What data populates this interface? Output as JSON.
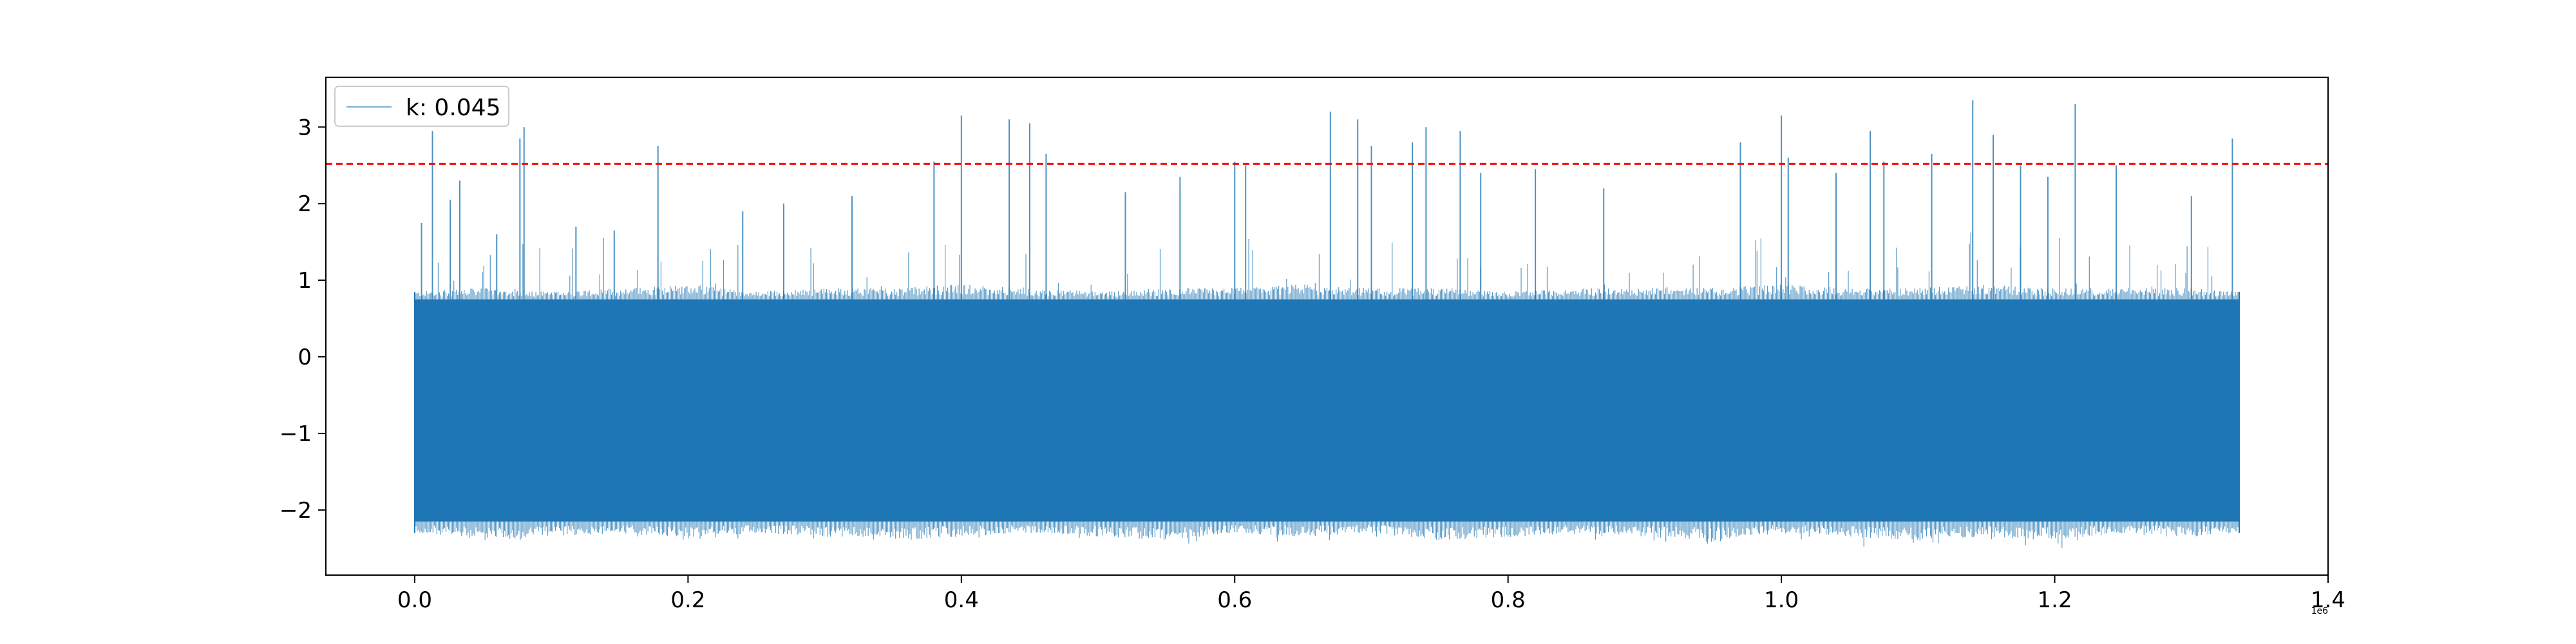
{
  "chart_data": {
    "type": "line",
    "title": "",
    "xlabel": "",
    "ylabel": "",
    "x_offset_label": "1e6",
    "xlim": [
      -65000,
      1400000
    ],
    "ylim": [
      -2.85,
      3.65
    ],
    "x_ticks": [
      0,
      200000,
      400000,
      600000,
      800000,
      1000000,
      1200000,
      1400000
    ],
    "x_tick_labels": [
      "0.0",
      "0.2",
      "0.4",
      "0.6",
      "0.8",
      "1.0",
      "1.2",
      "1.4"
    ],
    "y_ticks": [
      -2,
      -1,
      0,
      1,
      2,
      3
    ],
    "y_tick_labels": [
      "−2",
      "−1",
      "0",
      "1",
      "2",
      "3"
    ],
    "grid": false,
    "legend_position": "top-left",
    "series": [
      {
        "name": "k: 0.045",
        "color": "#1f77b4",
        "x_range": [
          0,
          1335000
        ],
        "typical_band": [
          -2.15,
          0.75
        ],
        "envelope": {
          "x": [
            0,
            50000,
            100000,
            150000,
            200000,
            250000,
            300000,
            350000,
            400000,
            450000,
            500000,
            550000,
            600000,
            650000,
            700000,
            750000,
            800000,
            850000,
            900000,
            950000,
            1000000,
            1050000,
            1100000,
            1150000,
            1200000,
            1250000,
            1300000,
            1335000
          ],
          "upper": [
            0.85,
            0.9,
            0.85,
            0.9,
            0.95,
            0.85,
            0.9,
            0.9,
            0.95,
            0.9,
            0.85,
            0.9,
            0.9,
            0.95,
            0.9,
            0.9,
            0.85,
            0.9,
            0.9,
            0.9,
            0.95,
            0.9,
            0.9,
            0.95,
            0.9,
            0.9,
            0.9,
            0.85
          ],
          "lower": [
            -2.3,
            -2.4,
            -2.35,
            -2.3,
            -2.4,
            -2.3,
            -2.35,
            -2.4,
            -2.35,
            -2.3,
            -2.35,
            -2.4,
            -2.3,
            -2.35,
            -2.3,
            -2.4,
            -2.35,
            -2.3,
            -2.35,
            -2.4,
            -2.3,
            -2.35,
            -2.4,
            -2.35,
            -2.4,
            -2.3,
            -2.35,
            -2.3
          ]
        },
        "peaks": {
          "x": [
            5000,
            13000,
            26000,
            33000,
            60000,
            77000,
            80000,
            118000,
            146000,
            178000,
            240000,
            270000,
            320000,
            380000,
            400000,
            435000,
            450000,
            462000,
            520000,
            560000,
            600000,
            608000,
            670000,
            690000,
            700000,
            730000,
            740000,
            765000,
            780000,
            820000,
            870000,
            970000,
            1000000,
            1005000,
            1040000,
            1065000,
            1075000,
            1110000,
            1140000,
            1155000,
            1175000,
            1195000,
            1215000,
            1245000,
            1300000,
            1330000
          ],
          "y": [
            1.75,
            2.95,
            2.05,
            2.3,
            1.6,
            2.85,
            3.0,
            1.7,
            1.65,
            2.75,
            1.9,
            2.0,
            2.1,
            2.55,
            3.15,
            3.1,
            3.05,
            2.65,
            2.15,
            2.35,
            2.55,
            2.5,
            3.2,
            3.1,
            2.75,
            2.8,
            3.0,
            2.95,
            2.4,
            2.45,
            2.2,
            2.8,
            3.15,
            2.6,
            2.4,
            2.95,
            2.55,
            2.65,
            3.35,
            2.9,
            2.5,
            2.35,
            3.3,
            2.5,
            2.1,
            2.85
          ]
        }
      }
    ],
    "reference_lines": [
      {
        "orientation": "horizontal",
        "y": 2.52,
        "color": "#ff0000",
        "style": "dashed"
      }
    ]
  }
}
